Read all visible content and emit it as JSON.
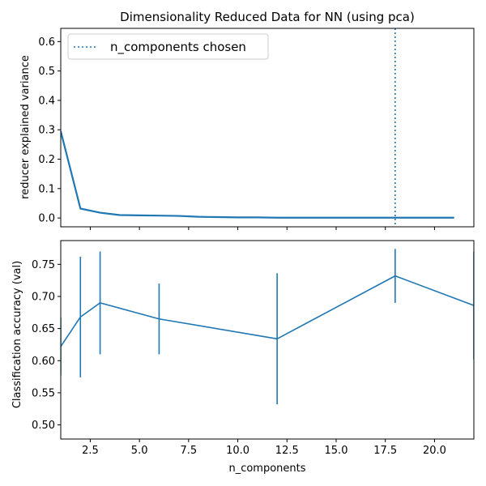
{
  "chart_data": [
    {
      "type": "line",
      "title": "Dimensionality Reduced Data for NN (using pca)",
      "xlabel": "",
      "ylabel": "reducer explained variance",
      "xlim": [
        1,
        22
      ],
      "ylim": [
        -0.03,
        0.645
      ],
      "yticks": [
        0.0,
        0.1,
        0.2,
        0.3,
        0.4,
        0.5,
        0.6
      ],
      "ytick_labels": [
        "0.0",
        "0.1",
        "0.2",
        "0.3",
        "0.4",
        "0.5",
        "0.6"
      ],
      "xticks": [
        2.5,
        5,
        7.5,
        10,
        12.5,
        15,
        17.5,
        20
      ],
      "show_xtick_labels": false,
      "grid": false,
      "series": [
        {
          "color": "#1f77b4",
          "x": [
            1,
            2,
            3,
            4,
            5,
            6,
            7,
            8,
            9,
            10,
            11,
            12,
            13,
            14,
            15,
            16,
            17,
            18,
            19,
            20,
            21
          ],
          "values": [
            0.295,
            0.032,
            0.018,
            0.01,
            0.009,
            0.008,
            0.007,
            0.004,
            0.003,
            0.002,
            0.002,
            0.001,
            0.001,
            0.001,
            0.001,
            0.001,
            0.001,
            0.001,
            0.001,
            0.001,
            0.001
          ]
        }
      ],
      "vline": {
        "x": 18,
        "style": "dotted",
        "color": "#1f77b4",
        "label": "n_components chosen"
      },
      "legend": {
        "position": "top-left",
        "entries": [
          "n_components chosen"
        ]
      }
    },
    {
      "type": "line",
      "title": "",
      "xlabel": "n_components",
      "ylabel": "Classification accuracy (val)",
      "xlim": [
        1,
        22
      ],
      "ylim": [
        0.478,
        0.787
      ],
      "yticks": [
        0.5,
        0.55,
        0.6,
        0.65,
        0.7,
        0.75
      ],
      "ytick_labels": [
        "0.50",
        "0.55",
        "0.60",
        "0.65",
        "0.70",
        "0.75"
      ],
      "xticks": [
        2.5,
        5,
        7.5,
        10,
        12.5,
        15,
        17.5,
        20
      ],
      "xtick_labels": [
        "2.5",
        "5.0",
        "7.5",
        "10.0",
        "12.5",
        "15.0",
        "17.5",
        "20.0"
      ],
      "grid": false,
      "series": [
        {
          "color": "#1f77b4",
          "x": [
            1,
            2,
            3,
            6,
            12,
            18,
            22
          ],
          "values": [
            0.622,
            0.668,
            0.69,
            0.665,
            0.634,
            0.732,
            0.686
          ],
          "error": [
            0.045,
            0.094,
            0.08,
            0.055,
            0.102,
            0.042,
            0.084
          ]
        }
      ]
    }
  ]
}
